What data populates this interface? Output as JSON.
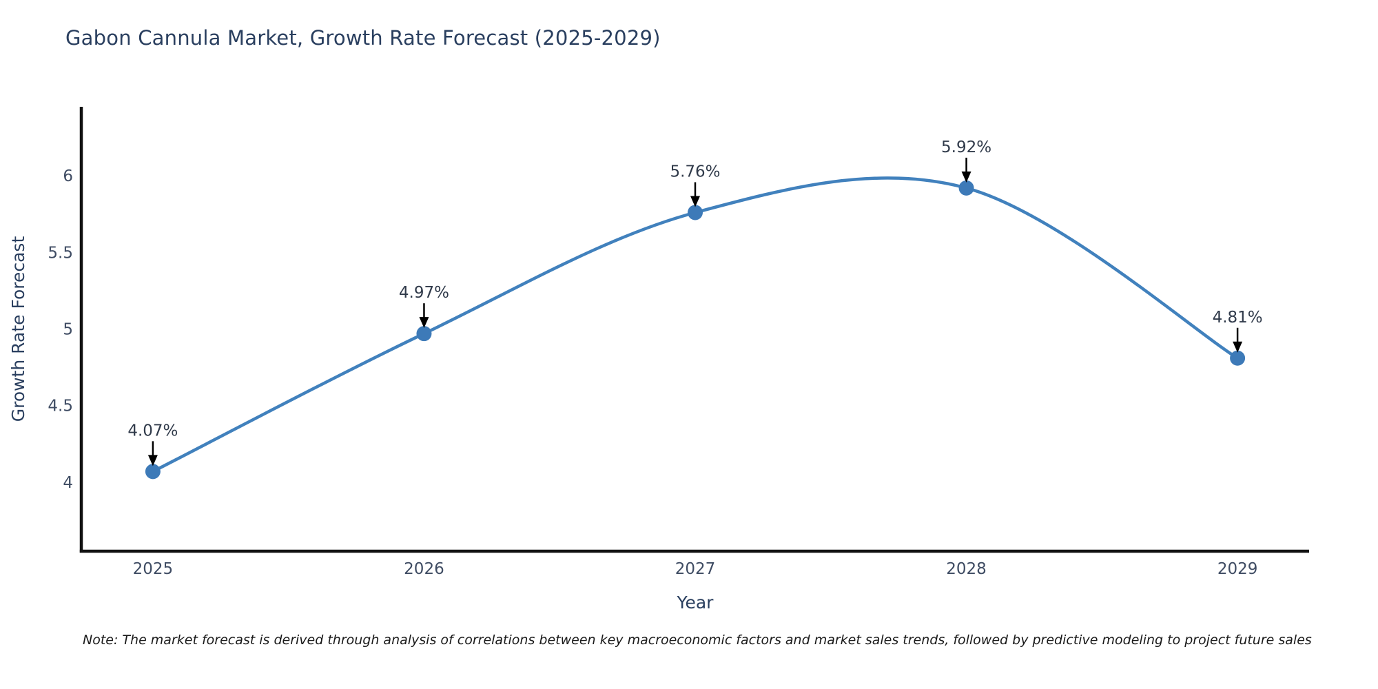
{
  "title": "Gabon Cannula Market, Growth Rate Forecast (2025-2029)",
  "note": "Note: The market forecast is derived through analysis of correlations between key macroeconomic factors and market sales trends, followed by predictive modeling to project future sales",
  "chart_data": {
    "type": "line",
    "line_shape": "spline",
    "title": "Gabon Cannula Market, Growth Rate Forecast (2025-2029)",
    "xlabel": "Year",
    "ylabel": "Growth Rate Forecast",
    "x": [
      2025,
      2026,
      2027,
      2028,
      2029
    ],
    "y": [
      4.07,
      4.97,
      5.76,
      5.92,
      4.81
    ],
    "point_labels": [
      "4.07%",
      "4.97%",
      "5.76%",
      "5.92%",
      "4.81%"
    ],
    "x_ticks": [
      "2025",
      "2026",
      "2027",
      "2028",
      "2029"
    ],
    "x_tick_values": [
      2025,
      2026,
      2027,
      2028,
      2029
    ],
    "y_ticks": [
      "4",
      "4.5",
      "5",
      "5.5",
      "6"
    ],
    "y_tick_values": [
      4,
      4.5,
      5,
      5.5,
      6
    ],
    "xlim": [
      2024.736,
      2029.264
    ],
    "ylim": [
      3.55,
      6.45
    ],
    "grid": false,
    "legend": null,
    "colors": {
      "line": "#4181bd",
      "marker": "#3d7ab8",
      "axis_line": "#111111",
      "tick_label": "#3f4c63",
      "axis_title": "#2a3f5f",
      "annotation_text": "#303a4a",
      "annotation_arrow": "#000000",
      "title_text": "#2a3f5f",
      "background": "#ffffff"
    }
  }
}
